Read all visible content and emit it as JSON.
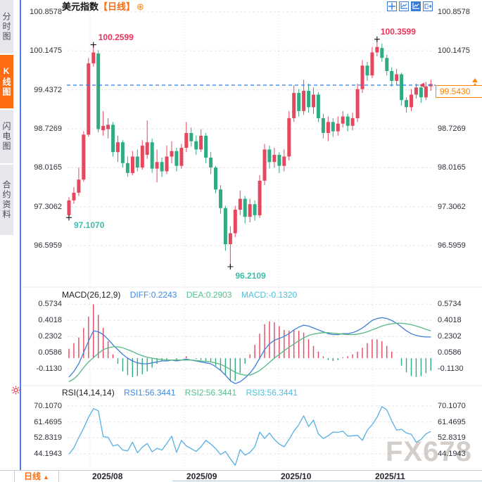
{
  "header": {
    "title": "美元指数",
    "period_tag": "【日线】",
    "plus_glyph": "⊕"
  },
  "sidebar": {
    "tabs": [
      {
        "label": "分时图",
        "active": false
      },
      {
        "label": "K线图",
        "active": true
      },
      {
        "label": "闪电图",
        "active": false
      },
      {
        "label": "合约资料",
        "active": false
      }
    ]
  },
  "toolbar": {
    "icons": [
      {
        "name": "crosshair-icon",
        "active": false
      },
      {
        "name": "line-chart-icon",
        "active": false
      },
      {
        "name": "candlestick-chart-icon",
        "active": true
      },
      {
        "name": "exit-chart-icon",
        "active": false
      }
    ]
  },
  "price_panel": {
    "current_price": "99.5430"
  },
  "macd_panel": {
    "title": "MACD(26,12,9)",
    "diff_label": "DIFF:0.2243",
    "dea_label": "DEA:0.2903",
    "macd_label": "MACD:-0.1320"
  },
  "rsi_panel": {
    "title": "RSI(14,14,14)",
    "rsi1_label": "RSI1:56.3441",
    "rsi2_label": "RSI2:56.3441",
    "rsi3_label": "RSI3:56.3441"
  },
  "bottom_bar": {
    "period_label": "日线",
    "up_arrow": "▲",
    "dates": [
      "2025/08",
      "2025/09",
      "2025/10",
      "2025/11"
    ]
  },
  "watermark": "FX678",
  "colors": {
    "up": "#e5475e",
    "down": "#31ab82",
    "label_red": "#ee3158",
    "label_teal": "#3dbda9",
    "accent_orange": "#ff6d12",
    "price_line_blue": "#2a7de1",
    "diff_blue": "#3f7fd6",
    "dea_green": "#55b882",
    "rsi_blue": "#55b0e3",
    "toolbar_blue": "#3a7bd5",
    "grid": "#e4e4ec",
    "grid_dot": "#d8d8e2",
    "axis_text": "#30303a"
  },
  "chart_data": [
    {
      "type": "candlestick",
      "title": "美元指数 日线 (US Dollar Index, daily)",
      "x_axis": {
        "labels": [
          "2025/08",
          "2025/09",
          "2025/10",
          "2025/11"
        ]
      },
      "y_axis": {
        "ticks": [
          100.8578,
          100.1475,
          99.4372,
          98.7269,
          98.0165,
          97.3062,
          96.5959
        ]
      },
      "ylim": [
        96.2109,
        100.8578
      ],
      "last_price": 99.543,
      "annotations": [
        {
          "id": "early-high",
          "text": "100.2599",
          "index": 5,
          "value": 100.2599,
          "color": "red"
        },
        {
          "id": "early-low",
          "text": "97.1070",
          "index": 0,
          "value": 97.107,
          "color": "teal"
        },
        {
          "id": "mid-low",
          "text": "96.2109",
          "index": 33,
          "value": 96.2109,
          "color": "teal"
        },
        {
          "id": "late-high",
          "text": "100.3599",
          "index": 63,
          "value": 100.3599,
          "color": "red"
        }
      ],
      "ohlc": [
        [
          97.15,
          97.48,
          97.107,
          97.42
        ],
        [
          97.42,
          97.66,
          97.36,
          97.56
        ],
        [
          97.56,
          98.02,
          97.5,
          97.8
        ],
        [
          97.8,
          98.68,
          97.76,
          98.62
        ],
        [
          98.62,
          100.02,
          98.58,
          99.92
        ],
        [
          99.92,
          100.2599,
          99.86,
          100.12
        ],
        [
          100.1,
          100.16,
          98.66,
          98.72
        ],
        [
          98.7,
          99.05,
          98.6,
          98.78
        ],
        [
          98.72,
          98.92,
          98.55,
          98.8
        ],
        [
          98.8,
          98.85,
          98.22,
          98.3
        ],
        [
          98.3,
          98.6,
          98.12,
          98.48
        ],
        [
          98.48,
          98.52,
          98.02,
          98.1
        ],
        [
          98.1,
          98.22,
          97.85,
          97.92
        ],
        [
          97.92,
          98.32,
          97.88,
          98.22
        ],
        [
          98.22,
          98.35,
          97.95,
          98.02
        ],
        [
          98.02,
          98.52,
          97.98,
          98.42
        ],
        [
          98.25,
          98.88,
          98.18,
          98.48
        ],
        [
          98.48,
          98.55,
          97.92,
          98.0
        ],
        [
          98.0,
          98.35,
          97.75,
          98.12
        ],
        [
          98.12,
          98.2,
          97.85,
          97.95
        ],
        [
          97.95,
          98.42,
          97.9,
          98.22
        ],
        [
          98.22,
          98.5,
          98.1,
          98.32
        ],
        [
          98.32,
          98.38,
          97.95,
          98.05
        ],
        [
          98.05,
          98.45,
          98.0,
          98.38
        ],
        [
          98.38,
          98.85,
          98.3,
          98.65
        ],
        [
          98.65,
          98.75,
          98.4,
          98.5
        ],
        [
          98.5,
          98.6,
          98.25,
          98.35
        ],
        [
          98.35,
          98.72,
          98.3,
          98.6
        ],
        [
          98.6,
          98.65,
          98.1,
          98.2
        ],
        [
          98.2,
          98.3,
          97.9,
          98.02
        ],
        [
          98.02,
          98.05,
          97.55,
          97.62
        ],
        [
          97.62,
          97.7,
          97.18,
          97.28
        ],
        [
          97.28,
          97.32,
          96.5,
          96.62
        ],
        [
          96.62,
          96.95,
          96.2109,
          96.82
        ],
        [
          96.82,
          97.32,
          96.75,
          97.25
        ],
        [
          97.25,
          97.6,
          97.15,
          97.45
        ],
        [
          97.45,
          97.5,
          97.0,
          97.12
        ],
        [
          97.12,
          97.45,
          97.02,
          97.35
        ],
        [
          97.35,
          97.42,
          97.05,
          97.15
        ],
        [
          97.15,
          97.88,
          97.1,
          97.78
        ],
        [
          97.78,
          98.45,
          97.7,
          98.35
        ],
        [
          98.35,
          98.42,
          98.0,
          98.12
        ],
        [
          98.12,
          98.38,
          98.02,
          98.25
        ],
        [
          98.25,
          98.3,
          97.92,
          98.05
        ],
        [
          98.05,
          98.35,
          97.95,
          98.22
        ],
        [
          98.22,
          99.05,
          98.15,
          98.92
        ],
        [
          98.92,
          99.52,
          98.85,
          99.38
        ],
        [
          99.38,
          99.45,
          98.95,
          99.05
        ],
        [
          99.05,
          99.62,
          98.98,
          99.42
        ],
        [
          99.42,
          99.55,
          99.02,
          99.12
        ],
        [
          99.12,
          99.48,
          99.0,
          99.35
        ],
        [
          99.35,
          99.4,
          98.85,
          98.92
        ],
        [
          98.92,
          99.0,
          98.55,
          98.65
        ],
        [
          98.65,
          98.95,
          98.5,
          98.85
        ],
        [
          98.85,
          98.92,
          98.58,
          98.68
        ],
        [
          98.68,
          98.95,
          98.6,
          98.82
        ],
        [
          98.82,
          99.05,
          98.75,
          98.95
        ],
        [
          98.95,
          99.0,
          98.68,
          98.78
        ],
        [
          98.78,
          99.02,
          98.7,
          98.92
        ],
        [
          98.92,
          99.55,
          98.85,
          99.45
        ],
        [
          99.45,
          99.98,
          99.38,
          99.88
        ],
        [
          99.88,
          99.95,
          99.6,
          99.7
        ],
        [
          99.7,
          100.22,
          99.65,
          100.12
        ],
        [
          100.12,
          100.3599,
          100.05,
          100.22
        ],
        [
          100.2,
          100.28,
          99.95,
          100.02
        ],
        [
          100.02,
          100.08,
          99.7,
          99.78
        ],
        [
          99.78,
          99.85,
          99.5,
          99.6
        ],
        [
          99.6,
          99.82,
          99.52,
          99.72
        ],
        [
          99.72,
          99.75,
          99.15,
          99.25
        ],
        [
          99.25,
          99.3,
          99.02,
          99.12
        ],
        [
          99.12,
          99.45,
          99.05,
          99.35
        ],
        [
          99.35,
          99.55,
          99.28,
          99.48
        ],
        [
          99.48,
          99.52,
          99.2,
          99.3
        ],
        [
          99.3,
          99.58,
          99.25,
          99.5
        ],
        [
          99.5,
          99.62,
          99.42,
          99.543
        ]
      ]
    },
    {
      "type": "macd",
      "title": "MACD(26,12,9)",
      "y_ticks": [
        0.5734,
        0.4018,
        0.2302,
        0.0586,
        -0.113
      ],
      "histogram_rule": "2*(diff-dea)",
      "current": {
        "diff": 0.2243,
        "dea": 0.2903,
        "macd": -0.132
      },
      "diff": [
        -0.2,
        -0.14,
        -0.06,
        0.06,
        0.18,
        0.29,
        0.28,
        0.25,
        0.2,
        0.14,
        0.09,
        0.04,
        0.0,
        -0.03,
        -0.05,
        -0.06,
        -0.06,
        -0.05,
        -0.04,
        -0.03,
        -0.03,
        -0.02,
        -0.03,
        -0.02,
        -0.01,
        -0.02,
        -0.03,
        -0.04,
        -0.05,
        -0.06,
        -0.09,
        -0.13,
        -0.18,
        -0.24,
        -0.27,
        -0.25,
        -0.21,
        -0.16,
        -0.09,
        0.0,
        0.09,
        0.15,
        0.19,
        0.21,
        0.23,
        0.26,
        0.3,
        0.33,
        0.35,
        0.34,
        0.32,
        0.3,
        0.28,
        0.26,
        0.25,
        0.25,
        0.26,
        0.26,
        0.27,
        0.29,
        0.32,
        0.36,
        0.4,
        0.42,
        0.43,
        0.42,
        0.4,
        0.37,
        0.33,
        0.29,
        0.26,
        0.24,
        0.23,
        0.225,
        0.2243
      ],
      "dea": [
        -0.25,
        -0.22,
        -0.17,
        -0.1,
        -0.04,
        0.005,
        0.05,
        0.09,
        0.11,
        0.12,
        0.12,
        0.11,
        0.09,
        0.07,
        0.045,
        0.025,
        0.01,
        0.0,
        -0.01,
        -0.015,
        -0.02,
        -0.02,
        -0.02,
        -0.02,
        -0.02,
        -0.02,
        -0.025,
        -0.03,
        -0.035,
        -0.04,
        -0.05,
        -0.065,
        -0.09,
        -0.12,
        -0.15,
        -0.17,
        -0.18,
        -0.18,
        -0.16,
        -0.13,
        -0.09,
        -0.045,
        0.0,
        0.04,
        0.08,
        0.115,
        0.15,
        0.185,
        0.215,
        0.24,
        0.255,
        0.265,
        0.27,
        0.27,
        0.265,
        0.26,
        0.255,
        0.25,
        0.25,
        0.255,
        0.265,
        0.28,
        0.3,
        0.32,
        0.34,
        0.355,
        0.365,
        0.37,
        0.37,
        0.365,
        0.355,
        0.34,
        0.325,
        0.305,
        0.2903
      ]
    },
    {
      "type": "line",
      "title": "RSI(14,14,14)",
      "y_ticks": [
        70.107,
        61.4695,
        52.8319,
        44.1943
      ],
      "current": {
        "rsi1": 56.3441,
        "rsi2": 56.3441,
        "rsi3": 56.3441
      },
      "values": [
        44.0,
        47.5,
        53.0,
        58.0,
        64.0,
        68.7,
        67.5,
        53.5,
        53.2,
        48.5,
        49.2,
        46.3,
        45.8,
        50.5,
        44.8,
        47.8,
        49.8,
        45.3,
        47.2,
        46.2,
        49.8,
        53.8,
        45.0,
        51.5,
        48.5,
        47.0,
        45.5,
        48.0,
        51.5,
        49.5,
        47.0,
        43.8,
        45.5,
        41.5,
        38.0,
        46.5,
        43.5,
        45.0,
        48.0,
        56.0,
        52.5,
        55.5,
        52.0,
        49.5,
        48.0,
        52.0,
        56.5,
        60.0,
        64.8,
        59.0,
        62.5,
        55.0,
        52.5,
        54.0,
        56.0,
        55.8,
        56.5,
        53.8,
        54.0,
        54.2,
        51.5,
        57.0,
        60.0,
        64.0,
        69.8,
        68.0,
        62.0,
        57.0,
        57.5,
        55.5,
        54.8,
        50.5,
        52.0,
        55.0,
        56.3441
      ]
    }
  ]
}
